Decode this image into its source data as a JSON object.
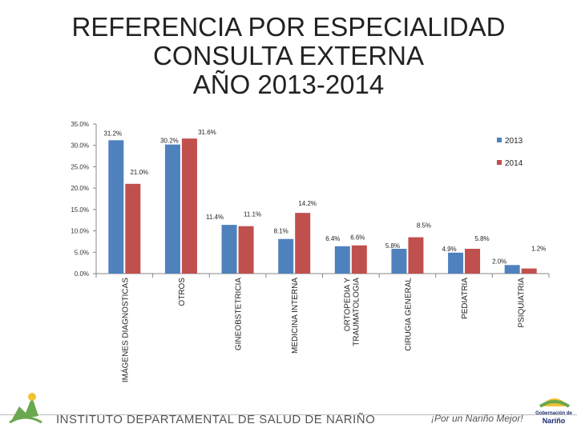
{
  "header": {
    "title_lines": [
      "REFERENCIA POR ESPECIALIDAD",
      "CONSULTA EXTERNA",
      "AÑO 2013-2014"
    ]
  },
  "chart_data": {
    "type": "bar",
    "title": "REFERENCIA POR ESPECIALIDAD CONSULTA EXTERNA AÑO 2013-2014",
    "xlabel": "",
    "ylabel": "",
    "categories": [
      "IMÁGENES DIAGNOSTICAS",
      "OTROS",
      "GINEOBSTETRICIA",
      "MEDICINA INTERNA",
      "ORTOPEDIA Y TRAUMATOLOGIA",
      "CIRUGIA GENERAL",
      "PEDIATRIA",
      "PSIQUIATRIA"
    ],
    "series": [
      {
        "name": "2013",
        "color": "#4f81bd",
        "values": [
          31.2,
          30.2,
          11.4,
          8.1,
          6.4,
          5.8,
          4.9,
          2.0
        ],
        "labels": [
          "31.2%",
          "30.2%",
          "11.4%",
          "8.1%",
          "6.4%",
          "5.8%",
          "4.9%",
          "2.0%"
        ]
      },
      {
        "name": "2014",
        "color": "#c0504d",
        "values": [
          21.0,
          31.6,
          11.1,
          14.2,
          6.6,
          8.5,
          5.8,
          1.2
        ],
        "labels": [
          "21.0%",
          "31.6%",
          "11.1%",
          "14.2%",
          "6.6%",
          "8.5%",
          "5.8%",
          "1.2%"
        ]
      }
    ],
    "ylim": [
      0,
      35
    ],
    "yticks": [
      0,
      5,
      10,
      15,
      20,
      25,
      30,
      35
    ],
    "ytick_labels": [
      "0.0%",
      "5.0%",
      "10.0%",
      "15.0%",
      "20.0%",
      "25.0%",
      "30.0%",
      "35.0%"
    ],
    "grid": false,
    "legend": "right"
  },
  "footer": {
    "institution": "INSTITUTO DEPARTAMENTAL DE SALUD DE NARIÑO",
    "slogan": "¡Por un Nariño Mejor!",
    "gov_label": "Gobernación de",
    "gov_name": "Nariño"
  },
  "colors": {
    "series_2013": "#4f81bd",
    "series_2014": "#c0504d",
    "logo_green": "#6aa84f",
    "logo_yellow": "#f1c232",
    "gov_blue": "#1a2a6c"
  }
}
